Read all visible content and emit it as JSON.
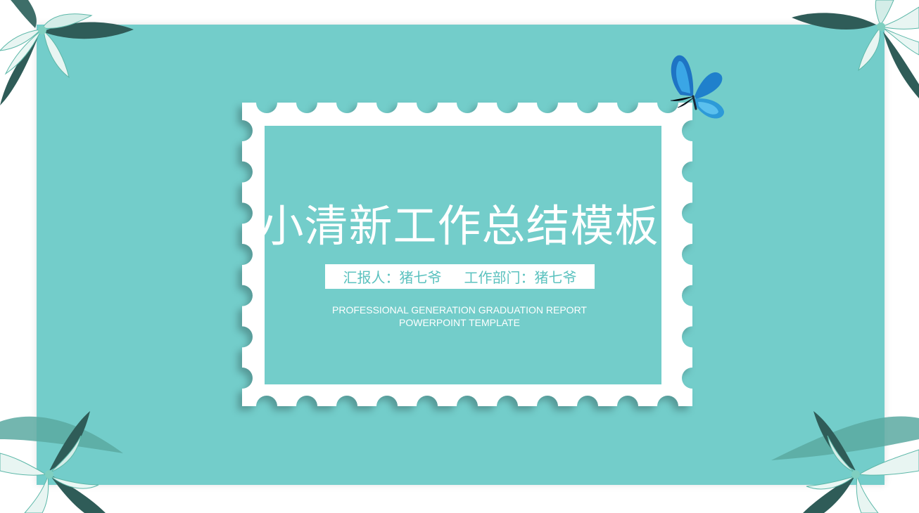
{
  "title": "小清新工作总结模板",
  "reporter": {
    "label": "汇报人：猪七爷",
    "department": "工作部门：猪七爷"
  },
  "subtitle": {
    "line1": "PROFESSIONAL GENERATION GRADUATION REPORT",
    "line2": "POWERPOINT TEMPLATE"
  },
  "colors": {
    "teal": "#73cdca",
    "white": "#ffffff",
    "accent_text": "#5cc2bf",
    "leaf_dark": "#2f5c58",
    "butterfly": "#2a8fd6"
  },
  "icons": {
    "decorations": [
      "flower-icon",
      "butterfly-icon",
      "stamp-frame"
    ]
  }
}
